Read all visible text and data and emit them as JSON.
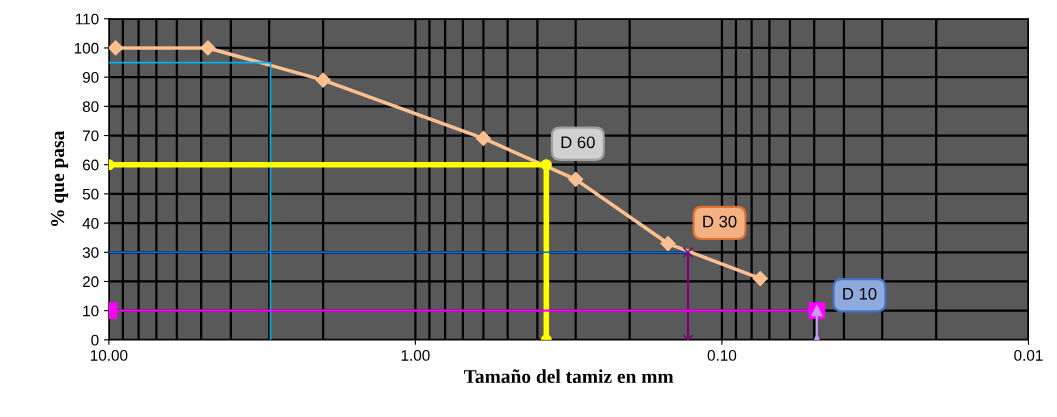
{
  "chart_data": {
    "type": "line",
    "xlabel": "Tamaño del tamiz en mm",
    "ylabel": "% que pasa",
    "log": "x",
    "xlim": [
      10,
      0.01
    ],
    "xticks": [
      {
        "value": 10,
        "label": "10.00"
      },
      {
        "value": 1,
        "label": "1.00"
      },
      {
        "value": 0.1,
        "label": "0.10"
      },
      {
        "value": 0.01,
        "label": "0.01"
      }
    ],
    "ylim": [
      0,
      110
    ],
    "yticks": [
      0,
      10,
      20,
      30,
      40,
      50,
      60,
      70,
      80,
      90,
      100,
      110
    ],
    "grid": true,
    "legend": false,
    "series": [
      {
        "color": "#fac090",
        "x": [
          9.5,
          4.75,
          2.0,
          0.6,
          0.3,
          0.15,
          0.075
        ],
        "values": [
          100,
          100,
          89,
          69,
          55,
          33,
          21
        ],
        "marker": "diamond",
        "line_style": "solid"
      },
      {
        "color": "#00b0f0",
        "x": [
          10,
          2.97,
          2.97
        ],
        "values": [
          95,
          95,
          0
        ],
        "marker": "none",
        "line_style": "solid"
      },
      {
        "color": "#ffff00",
        "x": [
          10,
          0.374,
          0.374
        ],
        "values": [
          60,
          60,
          0
        ],
        "marker": "circle",
        "line_style": "solid"
      },
      {
        "color": "#0070ff",
        "x": [
          10,
          0.129
        ],
        "values": [
          30,
          30
        ],
        "marker": "none",
        "line_style": "solid"
      },
      {
        "color": "#800080",
        "x": [
          0.129,
          0.129
        ],
        "values": [
          30,
          0
        ],
        "marker": "cross",
        "line_style": "solid"
      },
      {
        "color": "#ff00ff",
        "x": [
          10,
          0.049
        ],
        "values": [
          10,
          10
        ],
        "marker": "square",
        "line_style": "solid"
      },
      {
        "color": "#cc99ff",
        "x": [
          0.049,
          0.049
        ],
        "values": [
          10,
          0
        ],
        "marker": "triangle",
        "line_style": "solid"
      }
    ],
    "annotations": [
      {
        "text": "D 60",
        "x": 0.374,
        "y": 60
      },
      {
        "text": "D 30",
        "x": 0.129,
        "y": 30
      },
      {
        "text": "D 10",
        "x": 0.049,
        "y": 10
      }
    ]
  }
}
